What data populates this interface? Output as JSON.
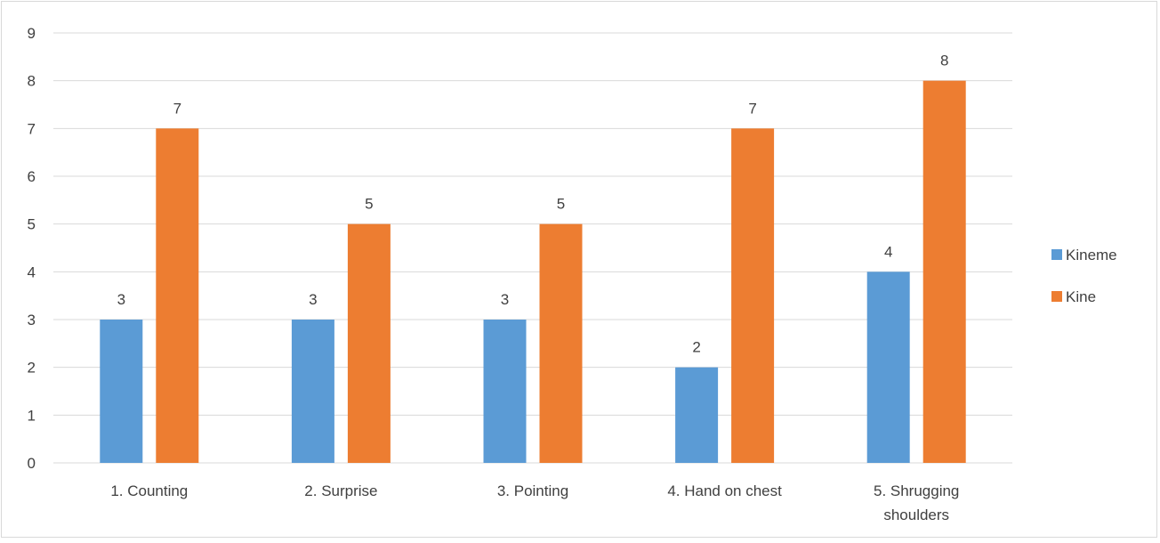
{
  "chart_data": {
    "type": "bar",
    "title": "",
    "xlabel": "",
    "ylabel": "",
    "categories": [
      [
        "1. Counting"
      ],
      [
        "2. Surprise"
      ],
      [
        "3. Pointing"
      ],
      [
        "4. Hand on chest"
      ],
      [
        "5. Shrugging",
        "shoulders"
      ]
    ],
    "series": [
      {
        "name": "Kineme",
        "values": [
          3,
          3,
          3,
          2,
          4
        ],
        "color": "#5b9bd5"
      },
      {
        "name": "Kine",
        "values": [
          7,
          5,
          5,
          7,
          8
        ],
        "color": "#ed7d31"
      }
    ],
    "ylim": [
      0,
      9
    ],
    "yticks": [
      0,
      1,
      2,
      3,
      4,
      5,
      6,
      7,
      8,
      9
    ],
    "grid": true,
    "data_labels": true,
    "legend": {
      "position": "right"
    }
  }
}
